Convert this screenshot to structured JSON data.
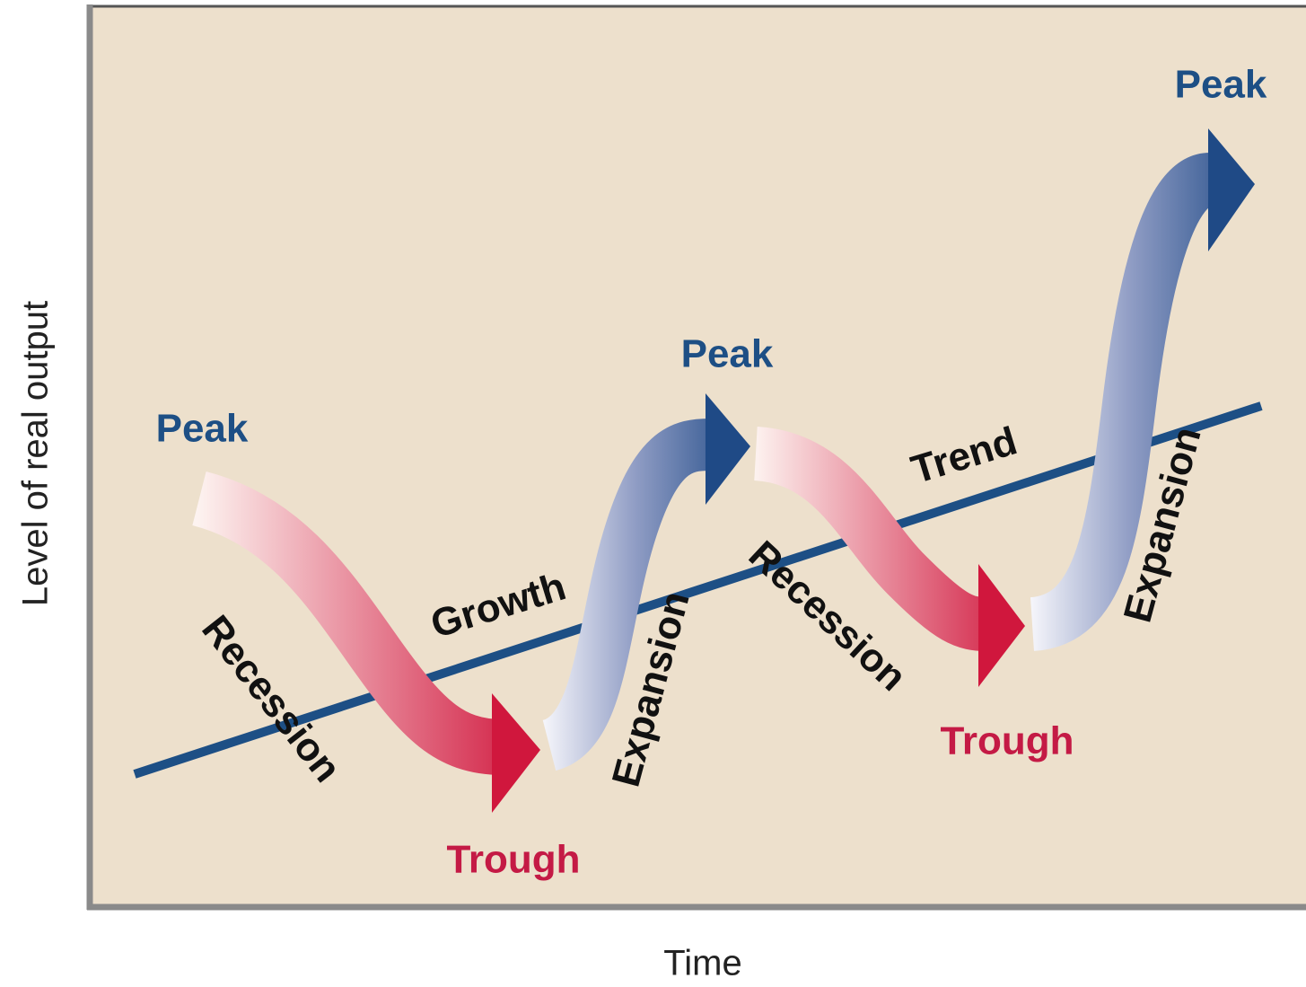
{
  "diagram": {
    "y_axis_label": "Level of real output",
    "x_axis_label": "Time",
    "labels": {
      "peak_1": "Peak",
      "peak_2": "Peak",
      "peak_3": "Peak",
      "trough_1": "Trough",
      "trough_2": "Trough",
      "recession_1": "Recession",
      "recession_2": "Recession",
      "expansion_1": "Expansion",
      "expansion_2": "Expansion",
      "growth": "Growth",
      "trend": "Trend"
    }
  }
}
